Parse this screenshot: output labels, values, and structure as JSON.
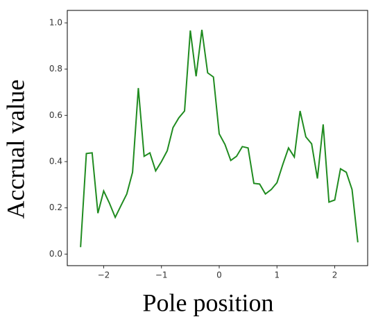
{
  "chart_data": {
    "type": "line",
    "x_label": "Pole position",
    "y_label": "Accrual value",
    "x": [
      -2.4,
      -2.3,
      -2.2,
      -2.1,
      -2.0,
      -1.9,
      -1.8,
      -1.7,
      -1.6,
      -1.5,
      -1.4,
      -1.3,
      -1.2,
      -1.1,
      -1.0,
      -0.9,
      -0.8,
      -0.7,
      -0.6,
      -0.5,
      -0.4,
      -0.3,
      -0.2,
      -0.1,
      0.0,
      0.1,
      0.2,
      0.3,
      0.4,
      0.5,
      0.6,
      0.7,
      0.8,
      0.9,
      1.0,
      1.1,
      1.2,
      1.3,
      1.4,
      1.5,
      1.6,
      1.7,
      1.8,
      1.9,
      2.0,
      2.1,
      2.2,
      2.3,
      2.4
    ],
    "series": [
      {
        "color": "#1f8b1f",
        "values": [
          0.03,
          0.435,
          0.438,
          0.177,
          0.273,
          0.22,
          0.159,
          0.21,
          0.26,
          0.354,
          0.718,
          0.423,
          0.438,
          0.36,
          0.4,
          0.447,
          0.547,
          0.589,
          0.619,
          0.967,
          0.769,
          0.97,
          0.784,
          0.766,
          0.52,
          0.474,
          0.405,
          0.423,
          0.465,
          0.459,
          0.306,
          0.303,
          0.26,
          0.279,
          0.309,
          0.387,
          0.459,
          0.42,
          0.619,
          0.507,
          0.477,
          0.327,
          0.561,
          0.225,
          0.234,
          0.369,
          0.354,
          0.279,
          0.051
        ]
      }
    ],
    "xlim": [
      -2.63,
      2.57
    ],
    "ylim": [
      -0.05,
      1.054
    ],
    "xticks": [
      {
        "value": -2,
        "label": "−2"
      },
      {
        "value": -1,
        "label": "−1"
      },
      0,
      1,
      2
    ],
    "yticks": [
      {
        "value": 0,
        "label": "0.0"
      },
      0.2,
      0.4,
      0.6,
      0.8,
      {
        "value": 1,
        "label": "1.0"
      }
    ]
  }
}
